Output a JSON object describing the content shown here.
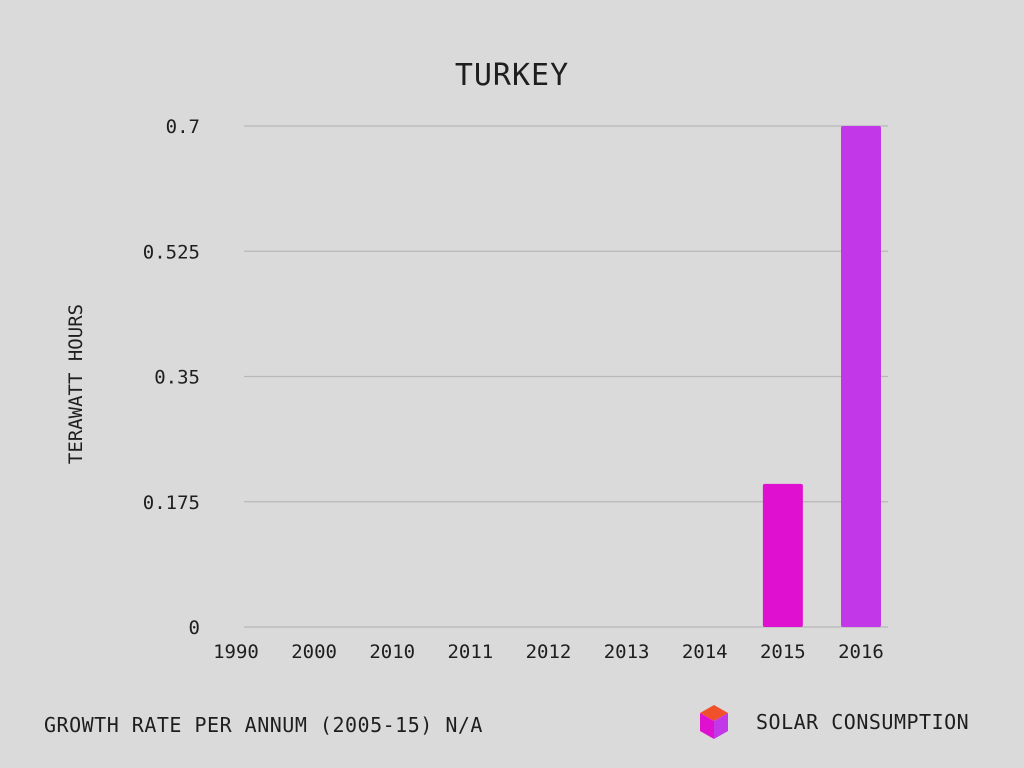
{
  "chart_data": {
    "type": "bar",
    "title": "TURKEY",
    "ylabel": "TERAWATT HOURS",
    "xlabel": "",
    "categories": [
      "1990",
      "2000",
      "2010",
      "2011",
      "2012",
      "2013",
      "2014",
      "2015",
      "2016"
    ],
    "series": [
      {
        "name": "SOLAR CONSUMPTION",
        "values": [
          0,
          0,
          0,
          0,
          0,
          0,
          0,
          0.2,
          0.7
        ]
      }
    ],
    "bar_colors": [
      "#e010d0",
      "#e010d0",
      "#e010d0",
      "#e010d0",
      "#e010d0",
      "#e010d0",
      "#e010d0",
      "#e010d0",
      "#c238e8"
    ],
    "yticks": [
      "0",
      "0.175",
      "0.35",
      "0.525",
      "0.7"
    ],
    "ylim": [
      0,
      0.7
    ],
    "grid": true,
    "legend_position": "bottom-right"
  },
  "footer": {
    "note": "GROWTH RATE PER ANNUM (2005-15) N/A"
  },
  "legend": {
    "label": "SOLAR CONSUMPTION",
    "icon": "cube-icon",
    "icon_colors": [
      "#f0502a",
      "#c238e8",
      "#e010d0"
    ]
  },
  "colors": {
    "background": "#dadada",
    "grid": "#b8b8b8",
    "text": "#1e1e1e"
  }
}
